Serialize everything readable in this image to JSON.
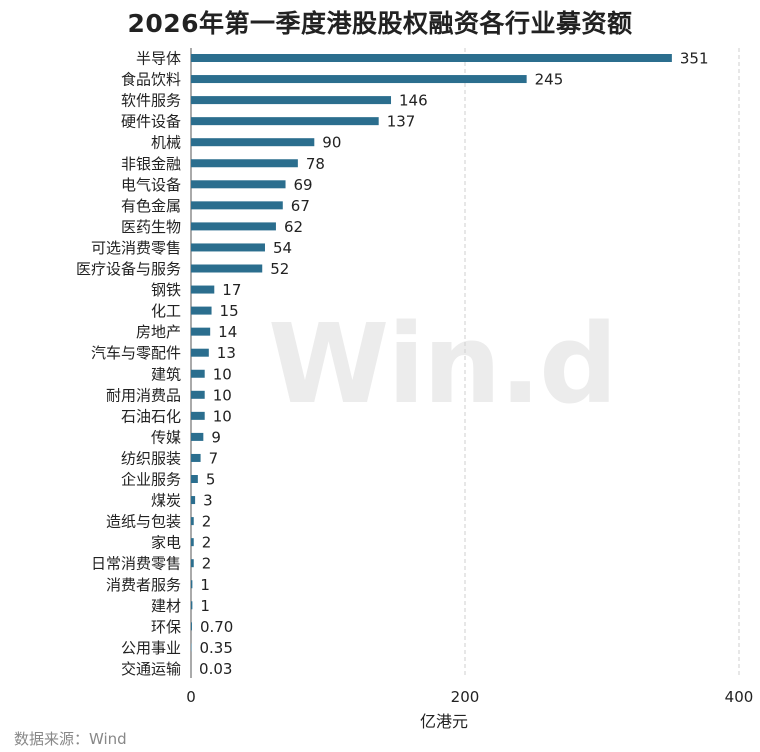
{
  "source": "数据来源：Wind",
  "watermark": "Win.d",
  "colors": {
    "bar": "#2b6e8e",
    "grid": "#cfcfcf",
    "axis": "#555555"
  },
  "chart_data": {
    "type": "bar",
    "orientation": "horizontal",
    "title": "2026年第一季度港股股权融资各行业募资额",
    "xlabel": "亿港元",
    "ylabel": "",
    "xlim": [
      0,
      400
    ],
    "xticks": [
      0,
      200,
      400
    ],
    "grid": "vertical dashed",
    "legend": "none",
    "categories": [
      "半导体",
      "食品饮料",
      "软件服务",
      "硬件设备",
      "机械",
      "非银金融",
      "电气设备",
      "有色金属",
      "医药生物",
      "可选消费零售",
      "医疗设备与服务",
      "钢铁",
      "化工",
      "房地产",
      "汽车与零配件",
      "建筑",
      "耐用消费品",
      "石油石化",
      "传媒",
      "纺织服装",
      "企业服务",
      "煤炭",
      "造纸与包装",
      "家电",
      "日常消费零售",
      "消费者服务",
      "建材",
      "环保",
      "公用事业",
      "交通运输"
    ],
    "values": [
      351,
      245,
      146,
      137,
      90,
      78,
      69,
      67,
      62,
      54,
      52,
      17,
      15,
      14,
      13,
      10,
      10,
      10,
      9,
      7,
      5,
      3,
      2,
      2,
      2,
      1,
      1,
      0.7,
      0.35,
      0.03
    ],
    "value_labels": [
      "351",
      "245",
      "146",
      "137",
      "90",
      "78",
      "69",
      "67",
      "62",
      "54",
      "52",
      "17",
      "15",
      "14",
      "13",
      "10",
      "10",
      "10",
      "9",
      "7",
      "5",
      "3",
      "2",
      "2",
      "2",
      "1",
      "1",
      "0.70",
      "0.35",
      "0.03"
    ]
  }
}
